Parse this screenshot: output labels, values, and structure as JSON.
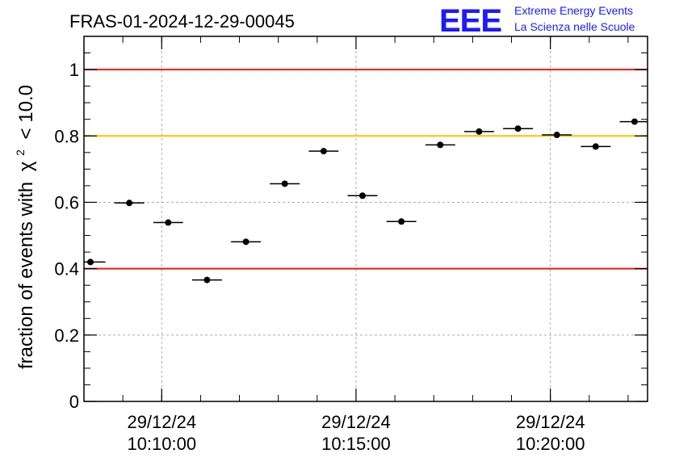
{
  "chart_data": {
    "type": "scatter",
    "title": "FRAS-01-2024-12-29-00045",
    "ylabel_main": "fraction of events with",
    "ylabel_symbol": "χ",
    "ylabel_sup": "2",
    "ylabel_tail": "< 10.0",
    "xlabel": "",
    "ylim": [
      0,
      1.1
    ],
    "yticks": [
      "0",
      "0.2",
      "0.4",
      "0.6",
      "0.8",
      "1"
    ],
    "ytick_values": [
      0,
      0.2,
      0.4,
      0.6,
      0.8,
      1.0
    ],
    "xlim": [
      "10:08:00",
      "10:22:30"
    ],
    "xticks": [
      {
        "date": "29/12/24",
        "time": "10:10:00"
      },
      {
        "date": "29/12/24",
        "time": "10:15:00"
      },
      {
        "date": "29/12/24",
        "time": "10:20:00"
      }
    ],
    "grid": true,
    "reference_lines": [
      {
        "y": 1.0,
        "color": "#e41a1c"
      },
      {
        "y": 0.8,
        "color": "#ffc000"
      },
      {
        "y": 0.4,
        "color": "#e41a1c"
      }
    ],
    "points": [
      {
        "x": "10:08:10",
        "y": 0.42
      },
      {
        "x": "10:09:10",
        "y": 0.598
      },
      {
        "x": "10:10:10",
        "y": 0.539
      },
      {
        "x": "10:11:10",
        "y": 0.366
      },
      {
        "x": "10:12:10",
        "y": 0.481
      },
      {
        "x": "10:13:10",
        "y": 0.656
      },
      {
        "x": "10:14:10",
        "y": 0.754
      },
      {
        "x": "10:15:10",
        "y": 0.62
      },
      {
        "x": "10:16:10",
        "y": 0.542
      },
      {
        "x": "10:17:10",
        "y": 0.773
      },
      {
        "x": "10:18:10",
        "y": 0.813
      },
      {
        "x": "10:19:10",
        "y": 0.822
      },
      {
        "x": "10:20:10",
        "y": 0.803
      },
      {
        "x": "10:21:10",
        "y": 0.768
      },
      {
        "x": "10:22:10",
        "y": 0.843
      }
    ],
    "point_color": "#000000"
  },
  "logo": {
    "mark": "EEE",
    "line1": "Extreme Energy Events",
    "line2": "La Scienza nelle Scuole",
    "color": "#1a1aff"
  }
}
